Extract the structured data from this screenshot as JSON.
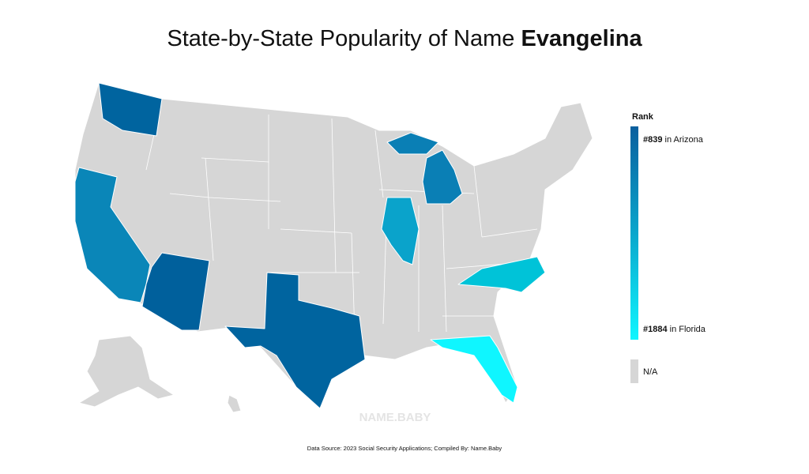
{
  "title": {
    "prefix": "State-by-State Popularity of Name",
    "name": "Evangelina"
  },
  "legend": {
    "title": "Rank",
    "top": {
      "rank": "#839",
      "place": "in Arizona"
    },
    "bottom": {
      "rank": "#1884",
      "place": "in Florida"
    },
    "na": "N/A"
  },
  "watermark": "NAME.BABY",
  "source": "Data Source: 2023 Social Security Applications; Compiled By: Name.Baby"
}
